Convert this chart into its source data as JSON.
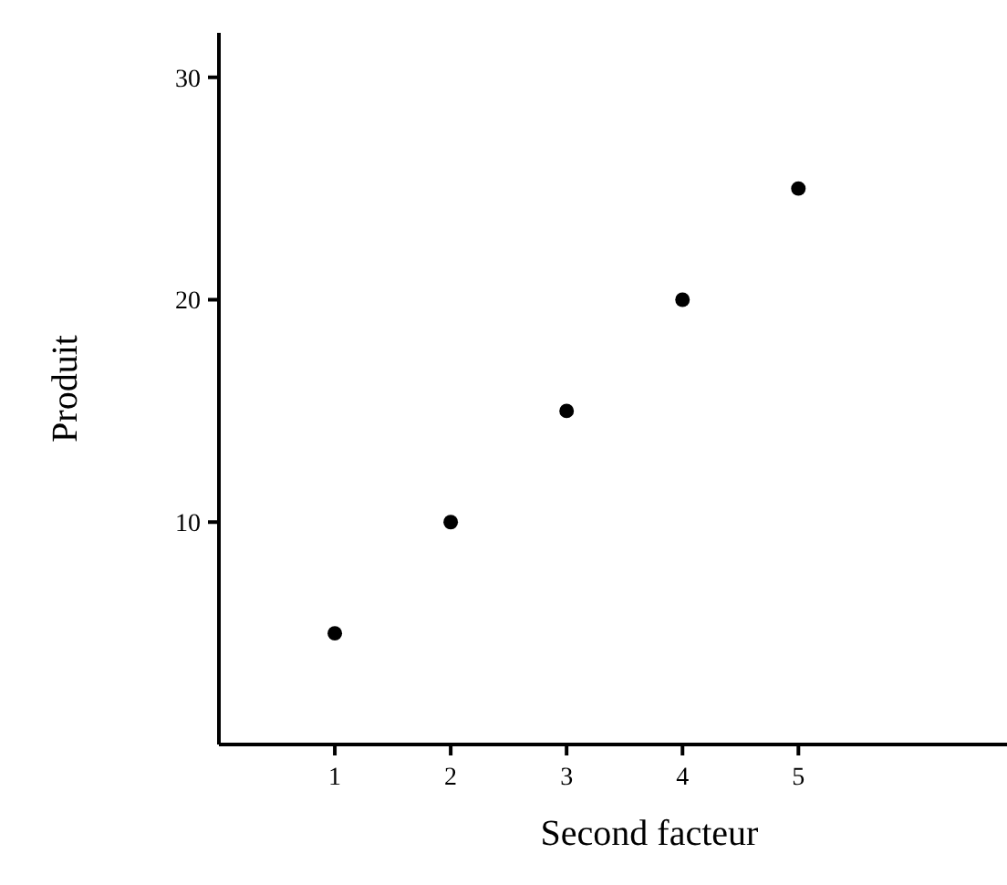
{
  "chart_data": {
    "type": "scatter",
    "xlabel": "Second facteur",
    "ylabel": "Produit",
    "x": [
      1,
      2,
      3,
      4,
      5
    ],
    "values": [
      5,
      10,
      15,
      20,
      25
    ],
    "color": "#000000",
    "marker": "circle",
    "xlim": [
      0,
      6.8
    ],
    "ylim": [
      0,
      32
    ],
    "xticks": [
      1,
      2,
      3,
      4,
      5
    ],
    "yticks": [
      10,
      20,
      30
    ]
  }
}
